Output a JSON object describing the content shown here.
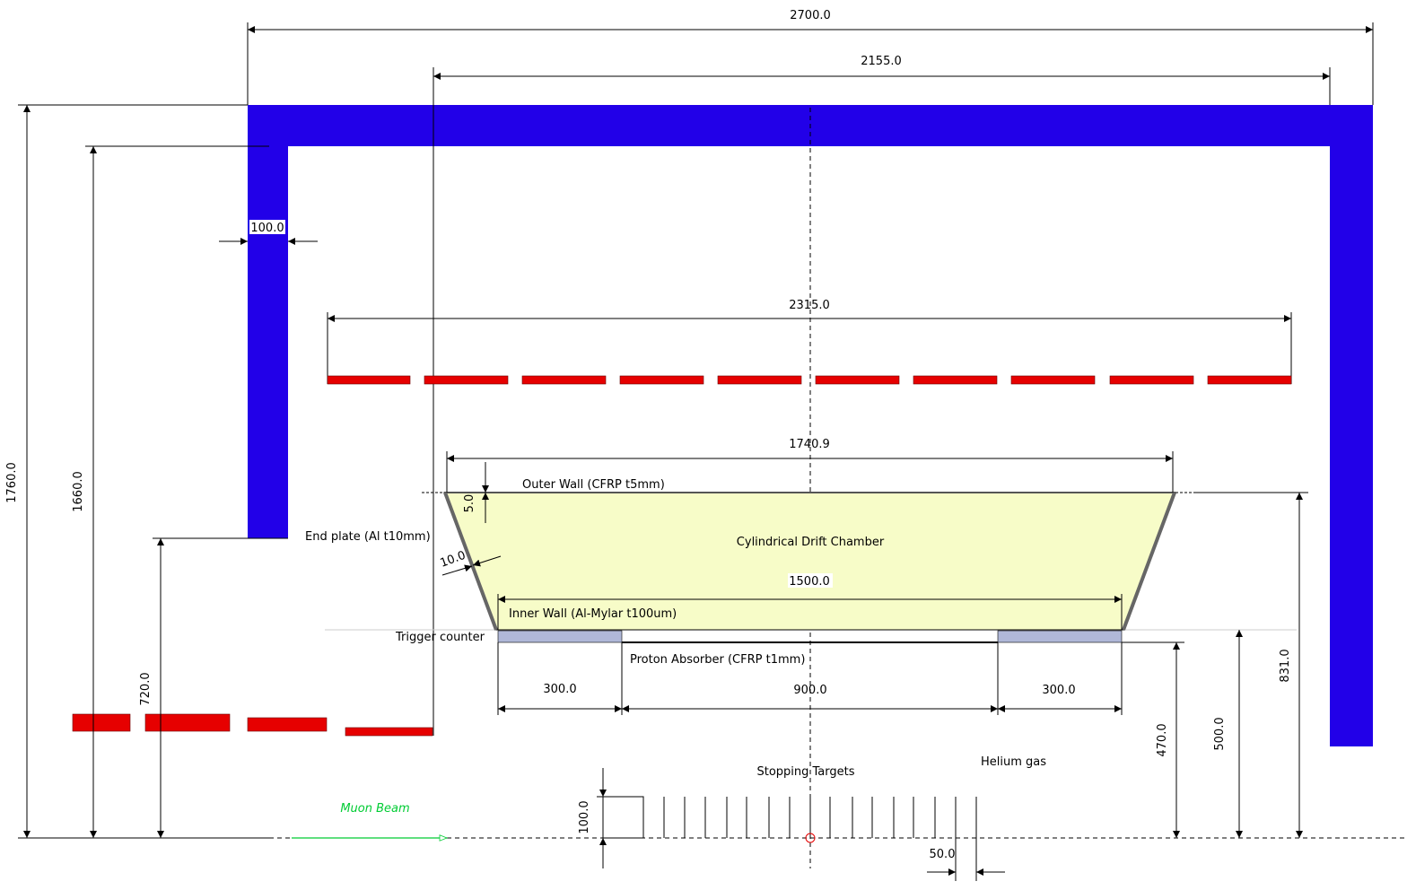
{
  "colors": {
    "frame": "#2200e8",
    "red_layers": "#e60000",
    "chamber_fill": "#f7fcc8",
    "trigger_counter": "#b0b8d8",
    "beam": "#00cc33",
    "target_center_marker": "#e60000"
  },
  "dimensions": {
    "overall_width": "2700.0",
    "inner_width": "2155.0",
    "plate_thickness": "100.0",
    "upper_layer_width": "2315.0",
    "chamber_outer_width": "1740.9",
    "outer_wall_thickness": "5.0",
    "endplate_thickness": "10.0",
    "chamber_inner_width": "1500.0",
    "trigger_left": "300.0",
    "absorber_length": "900.0",
    "trigger_right": "300.0",
    "height_1760": "1760.0",
    "height_1660": "1660.0",
    "height_720": "720.0",
    "height_470": "470.0",
    "height_500": "500.0",
    "height_831": "831.0",
    "target_height": "100.0",
    "target_spacing": "50.0"
  },
  "labels": {
    "outer_wall": "Outer Wall (CFRP t5mm)",
    "chamber": "Cylindrical Drift Chamber",
    "inner_wall": "Inner Wall (Al-Mylar t100um)",
    "end_plate": "End plate (Al t10mm)",
    "trigger_counter": "Trigger counter",
    "proton_absorber": "Proton Absorber (CFRP t1mm)",
    "stopping_targets": "Stopping Targets",
    "helium": "Helium gas",
    "muon_beam": "Muon Beam"
  }
}
